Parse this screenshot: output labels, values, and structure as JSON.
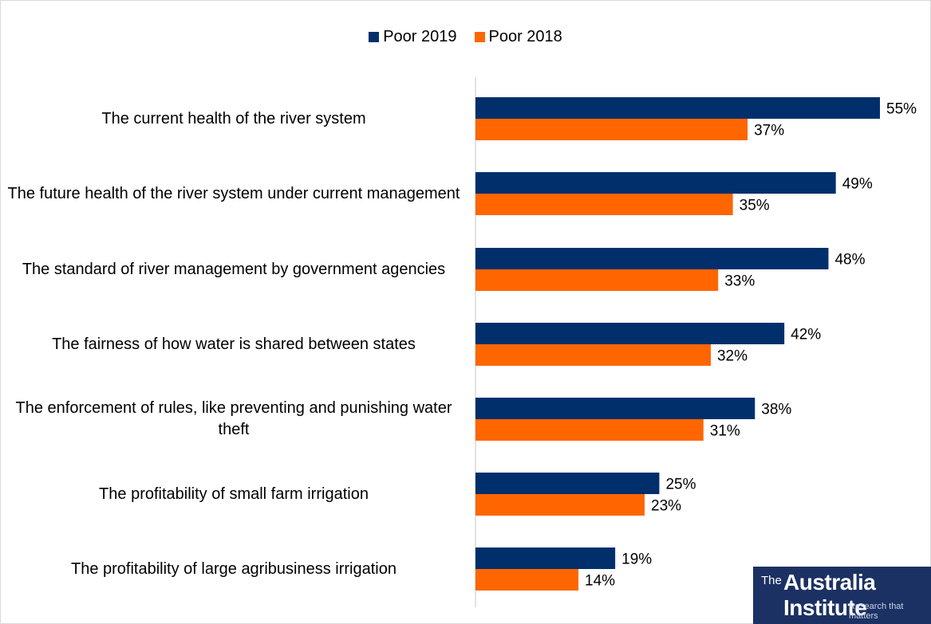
{
  "legend": {
    "series1_label": "Poor 2019",
    "series2_label": "Poor 2018"
  },
  "logo": {
    "prefix": "The",
    "name": "Australia Institute",
    "tagline": "Research that matters"
  },
  "colors": {
    "poor_2019": "#002f6c",
    "poor_2018": "#ff6600",
    "axis": "#d9d9d9",
    "logo_bg": "#1c3163"
  },
  "chart_data": {
    "type": "bar",
    "orientation": "horizontal",
    "categories": [
      "The current health of the river system",
      "The future health of the river system under current management",
      "The standard of river management by government agencies",
      "The fairness of how water is shared between states",
      "The enforcement of rules, like preventing and punishing water theft",
      "The profitability of small farm irrigation",
      "The profitability of large agribusiness irrigation"
    ],
    "series": [
      {
        "name": "Poor 2019",
        "values": [
          55,
          49,
          48,
          42,
          38,
          25,
          19
        ],
        "color": "#002f6c"
      },
      {
        "name": "Poor 2018",
        "values": [
          37,
          35,
          33,
          32,
          31,
          23,
          14
        ],
        "color": "#ff6600"
      }
    ],
    "value_suffix": "%",
    "xlim": [
      0,
      55
    ],
    "legend_position": "top",
    "grid": false,
    "data_labels": true
  }
}
